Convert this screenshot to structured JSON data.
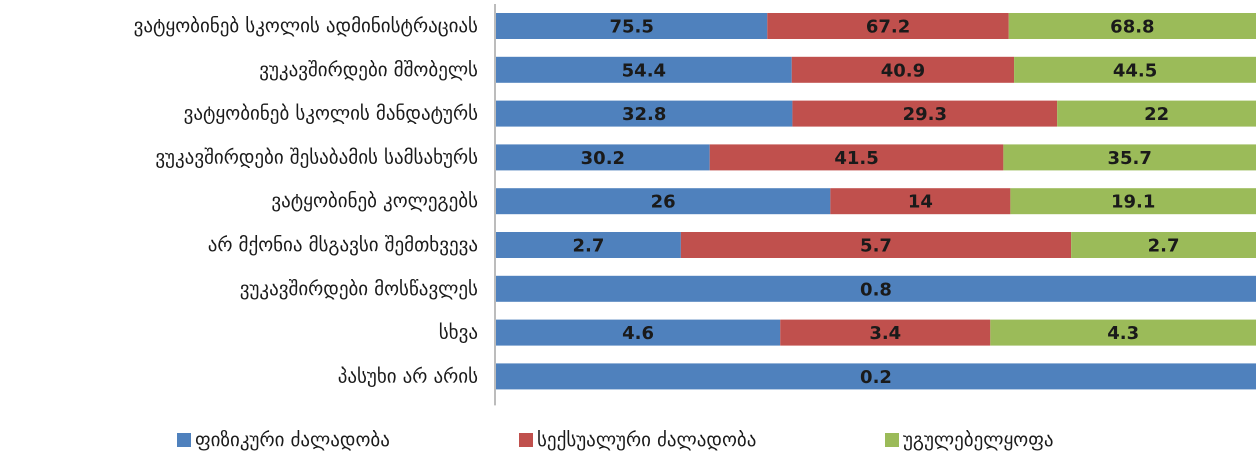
{
  "chart_data": {
    "type": "bar",
    "orientation": "horizontal",
    "stacked": true,
    "normalized": true,
    "categories": [
      "ვატყობინებ სკოლის ადმინისტრაციას",
      "ვუკავშირდები მშობელს",
      "ვატყობინებ სკოლის მანდატურს",
      "ვუკავშირდები შესაბამის სამსახურს",
      "ვატყობინებ კოლეგებს",
      "არ მქონია მსგავსი შემთხვევა",
      "ვუკავშირდები მოსწავლეს",
      "სხვა",
      "პასუხი არ არის"
    ],
    "series": [
      {
        "name": "ფიზიკური ძალადობა",
        "color": "#4f81bd",
        "values": [
          75.5,
          54.4,
          32.8,
          30.2,
          26,
          2.7,
          0.8,
          4.6,
          0.2
        ]
      },
      {
        "name": "სექსუალური ძალადობა",
        "color": "#c0504d",
        "values": [
          67.2,
          40.9,
          29.3,
          41.5,
          14,
          5.7,
          null,
          3.4,
          null
        ]
      },
      {
        "name": "უგულებელყოფა",
        "color": "#9bbb59",
        "values": [
          68.8,
          44.5,
          22,
          35.7,
          19.1,
          2.7,
          null,
          4.3,
          null
        ]
      }
    ],
    "legend": "bottom",
    "grid": false,
    "axis_color": "#a6a6a6"
  }
}
